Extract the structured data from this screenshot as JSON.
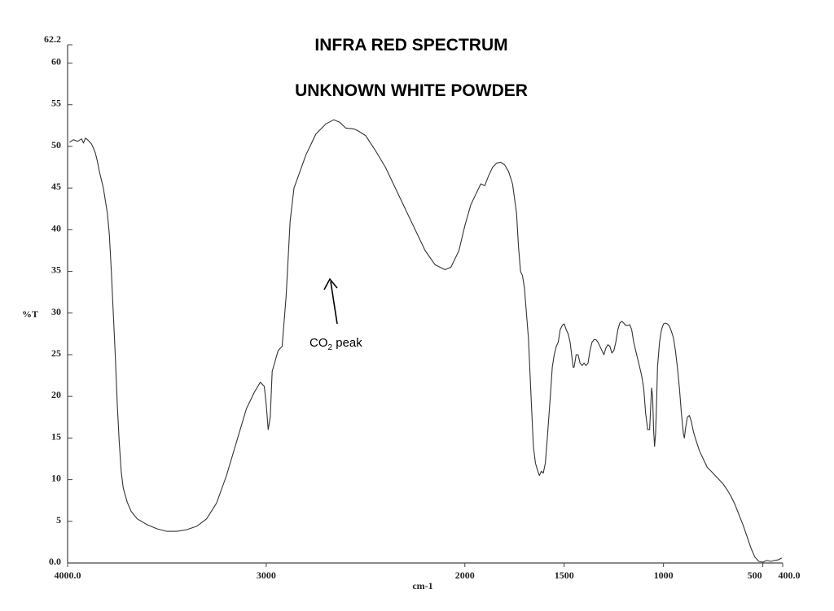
{
  "chart_data": {
    "type": "line",
    "title": "INFRA RED SPECTRUM",
    "subtitle": "UNKNOWN WHITE POWDER",
    "xlabel": "cm-1",
    "ylabel": "%T",
    "xlim": [
      4000,
      400
    ],
    "ylim": [
      0,
      62.2
    ],
    "x_reversed": true,
    "grid": false,
    "x_ticks": [
      {
        "value": 4000,
        "label": "4000.0"
      },
      {
        "value": 3000,
        "label": "3000"
      },
      {
        "value": 2000,
        "label": "2000"
      },
      {
        "value": 1500,
        "label": "1500"
      },
      {
        "value": 1000,
        "label": "1000"
      },
      {
        "value": 500,
        "label": "500"
      },
      {
        "value": 400,
        "label": "400.0"
      }
    ],
    "y_ticks": [
      {
        "value": 0,
        "label": "0.0"
      },
      {
        "value": 5,
        "label": "5"
      },
      {
        "value": 10,
        "label": "10"
      },
      {
        "value": 15,
        "label": "15"
      },
      {
        "value": 20,
        "label": "20"
      },
      {
        "value": 25,
        "label": "25"
      },
      {
        "value": 30,
        "label": "30"
      },
      {
        "value": 35,
        "label": "35"
      },
      {
        "value": 40,
        "label": "40"
      },
      {
        "value": 45,
        "label": "45"
      },
      {
        "value": 50,
        "label": "50"
      },
      {
        "value": 55,
        "label": "55"
      },
      {
        "value": 60,
        "label": "60"
      },
      {
        "value": 62.2,
        "label": "62.2"
      }
    ],
    "annotations": [
      {
        "text": "CO",
        "subscript": "2",
        "suffix": " peak",
        "x": 2030,
        "y": 35.0
      }
    ],
    "series": [
      {
        "color": "#333333",
        "points": [
          [
            3990,
            50.5
          ],
          [
            3970,
            50.8
          ],
          [
            3950,
            50.6
          ],
          [
            3930,
            50.9
          ],
          [
            3920,
            50.4
          ],
          [
            3910,
            51.0
          ],
          [
            3895,
            50.7
          ],
          [
            3880,
            50.3
          ],
          [
            3870,
            49.8
          ],
          [
            3860,
            49.2
          ],
          [
            3850,
            48.2
          ],
          [
            3840,
            47.0
          ],
          [
            3820,
            45.0
          ],
          [
            3800,
            42.0
          ],
          [
            3790,
            39.5
          ],
          [
            3780,
            35.0
          ],
          [
            3770,
            30.0
          ],
          [
            3760,
            25.0
          ],
          [
            3750,
            19.0
          ],
          [
            3740,
            14.5
          ],
          [
            3730,
            11.0
          ],
          [
            3720,
            9.0
          ],
          [
            3700,
            7.3
          ],
          [
            3680,
            6.2
          ],
          [
            3650,
            5.3
          ],
          [
            3600,
            4.6
          ],
          [
            3550,
            4.1
          ],
          [
            3500,
            3.8
          ],
          [
            3450,
            3.8
          ],
          [
            3400,
            4.0
          ],
          [
            3350,
            4.4
          ],
          [
            3300,
            5.3
          ],
          [
            3250,
            7.2
          ],
          [
            3200,
            10.5
          ],
          [
            3150,
            14.5
          ],
          [
            3100,
            18.5
          ],
          [
            3060,
            20.5
          ],
          [
            3030,
            21.7
          ],
          [
            3010,
            21.2
          ],
          [
            3000,
            19.0
          ],
          [
            2990,
            16.0
          ],
          [
            2980,
            17.5
          ],
          [
            2970,
            23.0
          ],
          [
            2940,
            25.5
          ],
          [
            2920,
            26.0
          ],
          [
            2900,
            32.0
          ],
          [
            2880,
            41.0
          ],
          [
            2860,
            45.0
          ],
          [
            2800,
            49.0
          ],
          [
            2750,
            51.5
          ],
          [
            2700,
            52.7
          ],
          [
            2660,
            53.2
          ],
          [
            2630,
            52.9
          ],
          [
            2600,
            52.2
          ],
          [
            2560,
            52.1
          ],
          [
            2540,
            51.9
          ],
          [
            2500,
            51.3
          ],
          [
            2450,
            49.5
          ],
          [
            2400,
            47.5
          ],
          [
            2350,
            45.0
          ],
          [
            2300,
            42.5
          ],
          [
            2250,
            40.0
          ],
          [
            2200,
            37.5
          ],
          [
            2150,
            35.8
          ],
          [
            2100,
            35.2
          ],
          [
            2070,
            35.5
          ],
          [
            2030,
            37.5
          ],
          [
            2000,
            40.5
          ],
          [
            1970,
            43.0
          ],
          [
            1940,
            44.5
          ],
          [
            1920,
            45.5
          ],
          [
            1900,
            45.3
          ],
          [
            1880,
            46.5
          ],
          [
            1860,
            47.5
          ],
          [
            1840,
            48.0
          ],
          [
            1820,
            48.1
          ],
          [
            1800,
            47.8
          ],
          [
            1780,
            47.0
          ],
          [
            1760,
            45.5
          ],
          [
            1740,
            42.0
          ],
          [
            1730,
            38.0
          ],
          [
            1720,
            35.0
          ],
          [
            1710,
            34.5
          ],
          [
            1700,
            33.0
          ],
          [
            1680,
            27.0
          ],
          [
            1665,
            19.0
          ],
          [
            1655,
            14.0
          ],
          [
            1645,
            12.0
          ],
          [
            1635,
            11.2
          ],
          [
            1625,
            10.5
          ],
          [
            1615,
            11.0
          ],
          [
            1605,
            10.8
          ],
          [
            1595,
            12.0
          ],
          [
            1585,
            15.0
          ],
          [
            1570,
            20.0
          ],
          [
            1560,
            23.5
          ],
          [
            1550,
            25.0
          ],
          [
            1540,
            26.0
          ],
          [
            1530,
            26.5
          ],
          [
            1520,
            28.0
          ],
          [
            1510,
            28.5
          ],
          [
            1500,
            28.7
          ],
          [
            1490,
            28.0
          ],
          [
            1480,
            27.5
          ],
          [
            1470,
            26.5
          ],
          [
            1460,
            24.5
          ],
          [
            1455,
            23.5
          ],
          [
            1450,
            23.5
          ],
          [
            1445,
            24.2
          ],
          [
            1440,
            25.0
          ],
          [
            1430,
            25.0
          ],
          [
            1420,
            24.0
          ],
          [
            1410,
            23.7
          ],
          [
            1400,
            24.0
          ],
          [
            1390,
            23.7
          ],
          [
            1380,
            24.0
          ],
          [
            1370,
            25.5
          ],
          [
            1360,
            26.5
          ],
          [
            1350,
            26.8
          ],
          [
            1340,
            26.8
          ],
          [
            1330,
            26.5
          ],
          [
            1320,
            26.0
          ],
          [
            1310,
            25.5
          ],
          [
            1300,
            25.0
          ],
          [
            1290,
            25.8
          ],
          [
            1280,
            26.2
          ],
          [
            1270,
            26.0
          ],
          [
            1260,
            25.2
          ],
          [
            1250,
            25.5
          ],
          [
            1240,
            26.5
          ],
          [
            1230,
            28.0
          ],
          [
            1220,
            28.8
          ],
          [
            1210,
            29.0
          ],
          [
            1200,
            28.8
          ],
          [
            1190,
            28.5
          ],
          [
            1180,
            28.5
          ],
          [
            1170,
            28.6
          ],
          [
            1160,
            28.0
          ],
          [
            1150,
            26.5
          ],
          [
            1140,
            25.5
          ],
          [
            1120,
            23.5
          ],
          [
            1110,
            22.5
          ],
          [
            1100,
            21.0
          ],
          [
            1090,
            18.0
          ],
          [
            1080,
            16.0
          ],
          [
            1070,
            16.0
          ],
          [
            1065,
            18.5
          ],
          [
            1060,
            21.0
          ],
          [
            1055,
            20.0
          ],
          [
            1050,
            16.0
          ],
          [
            1045,
            14.0
          ],
          [
            1040,
            15.5
          ],
          [
            1035,
            19.0
          ],
          [
            1030,
            23.5
          ],
          [
            1020,
            26.5
          ],
          [
            1010,
            28.0
          ],
          [
            1000,
            28.7
          ],
          [
            990,
            28.8
          ],
          [
            980,
            28.7
          ],
          [
            970,
            28.4
          ],
          [
            960,
            27.8
          ],
          [
            950,
            27.0
          ],
          [
            940,
            25.5
          ],
          [
            930,
            23.5
          ],
          [
            920,
            21.0
          ],
          [
            910,
            18.0
          ],
          [
            900,
            15.5
          ],
          [
            895,
            15.0
          ],
          [
            890,
            16.0
          ],
          [
            880,
            17.5
          ],
          [
            870,
            17.7
          ],
          [
            860,
            17.0
          ],
          [
            850,
            15.8
          ],
          [
            840,
            15.0
          ],
          [
            820,
            13.5
          ],
          [
            800,
            12.5
          ],
          [
            780,
            11.5
          ],
          [
            760,
            11.0
          ],
          [
            740,
            10.5
          ],
          [
            720,
            10.0
          ],
          [
            700,
            9.5
          ],
          [
            680,
            8.8
          ],
          [
            660,
            8.0
          ],
          [
            640,
            7.0
          ],
          [
            620,
            5.8
          ],
          [
            600,
            4.6
          ],
          [
            580,
            3.2
          ],
          [
            560,
            1.8
          ],
          [
            540,
            0.7
          ],
          [
            520,
            0.2
          ],
          [
            500,
            0.1
          ],
          [
            480,
            0.3
          ],
          [
            460,
            0.2
          ],
          [
            440,
            0.3
          ],
          [
            420,
            0.4
          ],
          [
            405,
            0.6
          ]
        ]
      }
    ]
  }
}
